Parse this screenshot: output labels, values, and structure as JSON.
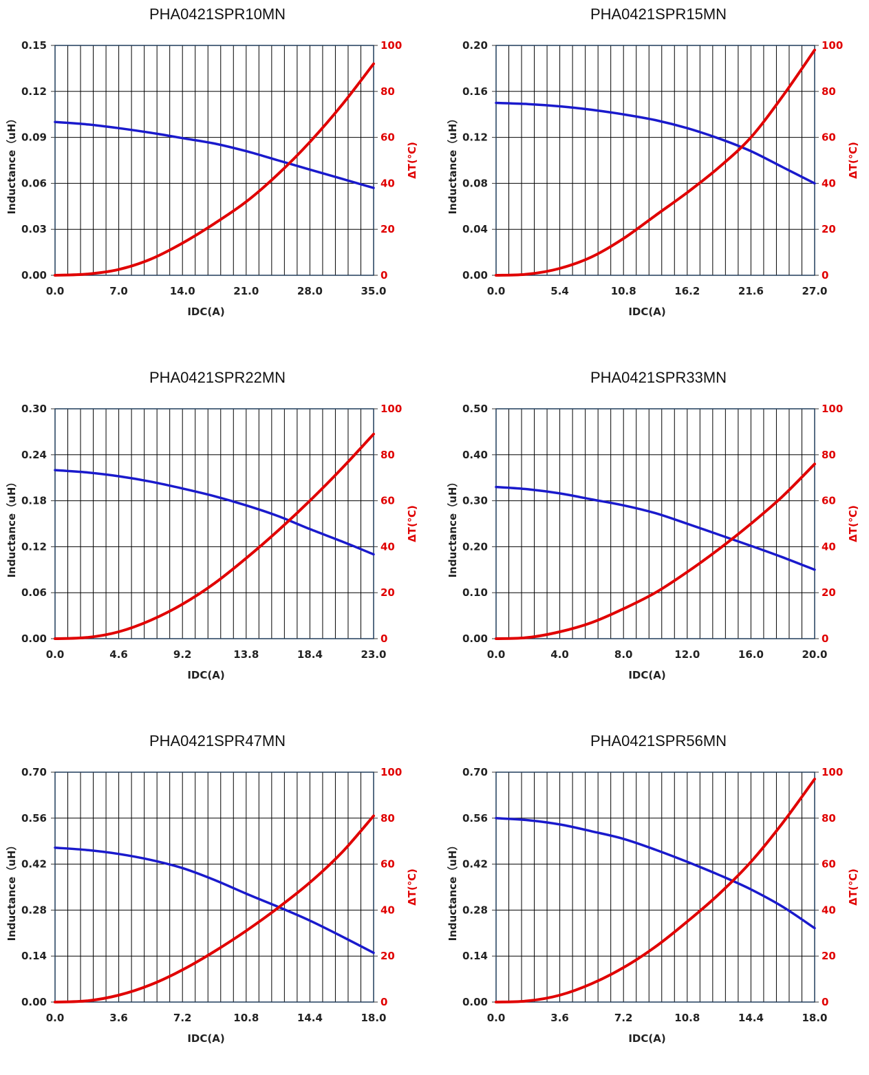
{
  "colors": {
    "inductance": "#1a1acc",
    "temperature": "#e00000",
    "grid": "#000000",
    "frame": "#1f3b5a"
  },
  "chart_data": [
    {
      "type": "line",
      "title": "PHA0421SPR10MN",
      "xlabel": "IDC(A)",
      "ylabel": "Inductance（uH）",
      "y2label": "ΔT(℃)",
      "xlim": [
        0,
        35
      ],
      "ylim": [
        0,
        0.15
      ],
      "y2lim": [
        0,
        100
      ],
      "xticks": [
        "0.0",
        "7.0",
        "14.0",
        "21.0",
        "28.0",
        "35.0"
      ],
      "yticks": [
        "0.00",
        "0.03",
        "0.06",
        "0.09",
        "0.12",
        "0.15"
      ],
      "y2ticks": [
        "0",
        "20",
        "40",
        "60",
        "80",
        "100"
      ],
      "grid": true,
      "series": [
        {
          "axis": "left",
          "x": [
            0,
            3.5,
            7,
            10.5,
            14,
            17.5,
            21,
            24.5,
            28,
            31.5,
            35
          ],
          "values": [
            0.1,
            0.0985,
            0.096,
            0.093,
            0.0895,
            0.086,
            0.081,
            0.075,
            0.069,
            0.063,
            0.057
          ]
        },
        {
          "axis": "right",
          "x": [
            0,
            3.5,
            7,
            10.5,
            14,
            17.5,
            21,
            24.5,
            28,
            31.5,
            35
          ],
          "values": [
            0,
            0.5,
            2.5,
            7,
            14,
            22.5,
            32,
            44,
            58,
            74,
            92
          ]
        }
      ]
    },
    {
      "type": "line",
      "title": "PHA0421SPR15MN",
      "xlabel": "IDC(A)",
      "ylabel": "Inductance（uH）",
      "y2label": "ΔT(℃)",
      "xlim": [
        0,
        27
      ],
      "ylim": [
        0,
        0.2
      ],
      "y2lim": [
        0,
        100
      ],
      "xticks": [
        "0.0",
        "5.4",
        "10.8",
        "16.2",
        "21.6",
        "27.0"
      ],
      "yticks": [
        "0.00",
        "0.04",
        "0.08",
        "0.12",
        "0.16",
        "0.20"
      ],
      "y2ticks": [
        "0",
        "20",
        "40",
        "60",
        "80",
        "100"
      ],
      "grid": true,
      "series": [
        {
          "axis": "left",
          "x": [
            0,
            2.7,
            5.4,
            8.1,
            10.8,
            13.5,
            16.2,
            18.9,
            21.6,
            24.3,
            27
          ],
          "values": [
            0.15,
            0.149,
            0.147,
            0.144,
            0.14,
            0.135,
            0.128,
            0.119,
            0.108,
            0.094,
            0.08
          ]
        },
        {
          "axis": "right",
          "x": [
            0,
            2.7,
            5.4,
            8.1,
            10.8,
            13.5,
            16.2,
            18.9,
            21.6,
            24.3,
            27
          ],
          "values": [
            0,
            0.5,
            3,
            8,
            16,
            26,
            36,
            47,
            60,
            78,
            98
          ]
        }
      ]
    },
    {
      "type": "line",
      "title": "PHA0421SPR22MN",
      "xlabel": "IDC(A)",
      "ylabel": "Inductance（uH）",
      "y2label": "ΔT(℃)",
      "xlim": [
        0,
        23
      ],
      "ylim": [
        0,
        0.3
      ],
      "y2lim": [
        0,
        100
      ],
      "xticks": [
        "0.0",
        "4.6",
        "9.2",
        "13.8",
        "18.4",
        "23.0"
      ],
      "yticks": [
        "0.00",
        "0.06",
        "0.12",
        "0.18",
        "0.24",
        "0.30"
      ],
      "y2ticks": [
        "0",
        "20",
        "40",
        "60",
        "80",
        "100"
      ],
      "grid": true,
      "series": [
        {
          "axis": "left",
          "x": [
            0,
            2.3,
            4.6,
            6.9,
            9.2,
            11.5,
            13.8,
            16.1,
            18.4,
            20.7,
            23
          ],
          "values": [
            0.22,
            0.217,
            0.212,
            0.205,
            0.196,
            0.186,
            0.174,
            0.16,
            0.143,
            0.127,
            0.11
          ]
        },
        {
          "axis": "right",
          "x": [
            0,
            2.3,
            4.6,
            6.9,
            9.2,
            11.5,
            13.8,
            16.1,
            18.4,
            20.7,
            23
          ],
          "values": [
            0,
            0.5,
            3,
            8,
            15,
            24,
            35,
            47,
            60,
            74,
            89
          ]
        }
      ]
    },
    {
      "type": "line",
      "title": "PHA0421SPR33MN",
      "xlabel": "IDC(A)",
      "ylabel": "Inductance（uH）",
      "y2label": "ΔT(℃)",
      "xlim": [
        0,
        20
      ],
      "ylim": [
        0,
        0.5
      ],
      "y2lim": [
        0,
        100
      ],
      "xticks": [
        "0.0",
        "4.0",
        "8.0",
        "12.0",
        "16.0",
        "20.0"
      ],
      "yticks": [
        "0.00",
        "0.10",
        "0.20",
        "0.30",
        "0.40",
        "0.50"
      ],
      "y2ticks": [
        "0",
        "20",
        "40",
        "60",
        "80",
        "100"
      ],
      "grid": true,
      "series": [
        {
          "axis": "left",
          "x": [
            0,
            2,
            4,
            6,
            8,
            10,
            12,
            14,
            16,
            18,
            20
          ],
          "values": [
            0.33,
            0.325,
            0.316,
            0.303,
            0.29,
            0.273,
            0.25,
            0.226,
            0.202,
            0.177,
            0.15
          ]
        },
        {
          "axis": "right",
          "x": [
            0,
            2,
            4,
            6,
            8,
            10,
            12,
            14,
            16,
            18,
            20
          ],
          "values": [
            0,
            0.5,
            3,
            7,
            13,
            20,
            29,
            39,
            50,
            62,
            76
          ]
        }
      ]
    },
    {
      "type": "line",
      "title": "PHA0421SPR47MN",
      "xlabel": "IDC(A)",
      "ylabel": "Inductance（uH）",
      "y2label": "ΔT(℃)",
      "xlim": [
        0,
        18
      ],
      "ylim": [
        0,
        0.7
      ],
      "y2lim": [
        0,
        100
      ],
      "xticks": [
        "0.0",
        "3.6",
        "7.2",
        "10.8",
        "14.4",
        "18.0"
      ],
      "yticks": [
        "0.00",
        "0.14",
        "0.28",
        "0.42",
        "0.56",
        "0.70"
      ],
      "y2ticks": [
        "0",
        "20",
        "40",
        "60",
        "80",
        "100"
      ],
      "grid": true,
      "series": [
        {
          "axis": "left",
          "x": [
            0,
            1.8,
            3.6,
            5.4,
            7.2,
            9,
            10.8,
            12.6,
            14.4,
            16.2,
            18
          ],
          "values": [
            0.47,
            0.463,
            0.451,
            0.433,
            0.408,
            0.372,
            0.33,
            0.29,
            0.248,
            0.2,
            0.15
          ]
        },
        {
          "axis": "right",
          "x": [
            0,
            1.8,
            3.6,
            5.4,
            7.2,
            9,
            10.8,
            12.6,
            14.4,
            16.2,
            18
          ],
          "values": [
            0,
            0.5,
            3,
            7.5,
            14,
            22,
            31,
            41,
            52,
            65,
            81
          ]
        }
      ]
    },
    {
      "type": "line",
      "title": "PHA0421SPR56MN",
      "xlabel": "IDC(A)",
      "ylabel": "Inductance（uH）",
      "y2label": "ΔT(℃)",
      "xlim": [
        0,
        18
      ],
      "ylim": [
        0,
        0.7
      ],
      "y2lim": [
        0,
        100
      ],
      "xticks": [
        "0.0",
        "3.6",
        "7.2",
        "10.8",
        "14.4",
        "18.0"
      ],
      "yticks": [
        "0.00",
        "0.14",
        "0.28",
        "0.42",
        "0.56",
        "0.70"
      ],
      "y2ticks": [
        "0",
        "20",
        "40",
        "60",
        "80",
        "100"
      ],
      "grid": true,
      "series": [
        {
          "axis": "left",
          "x": [
            0,
            1.8,
            3.6,
            5.4,
            7.2,
            9,
            10.8,
            12.6,
            14.4,
            16.2,
            18
          ],
          "values": [
            0.56,
            0.554,
            0.541,
            0.52,
            0.497,
            0.464,
            0.427,
            0.387,
            0.343,
            0.29,
            0.225
          ]
        },
        {
          "axis": "right",
          "x": [
            0,
            1.8,
            3.6,
            5.4,
            7.2,
            9,
            10.8,
            12.6,
            14.4,
            16.2,
            18
          ],
          "values": [
            0,
            0.5,
            3,
            8,
            15,
            24,
            35,
            47,
            61,
            78,
            97
          ]
        }
      ]
    }
  ]
}
